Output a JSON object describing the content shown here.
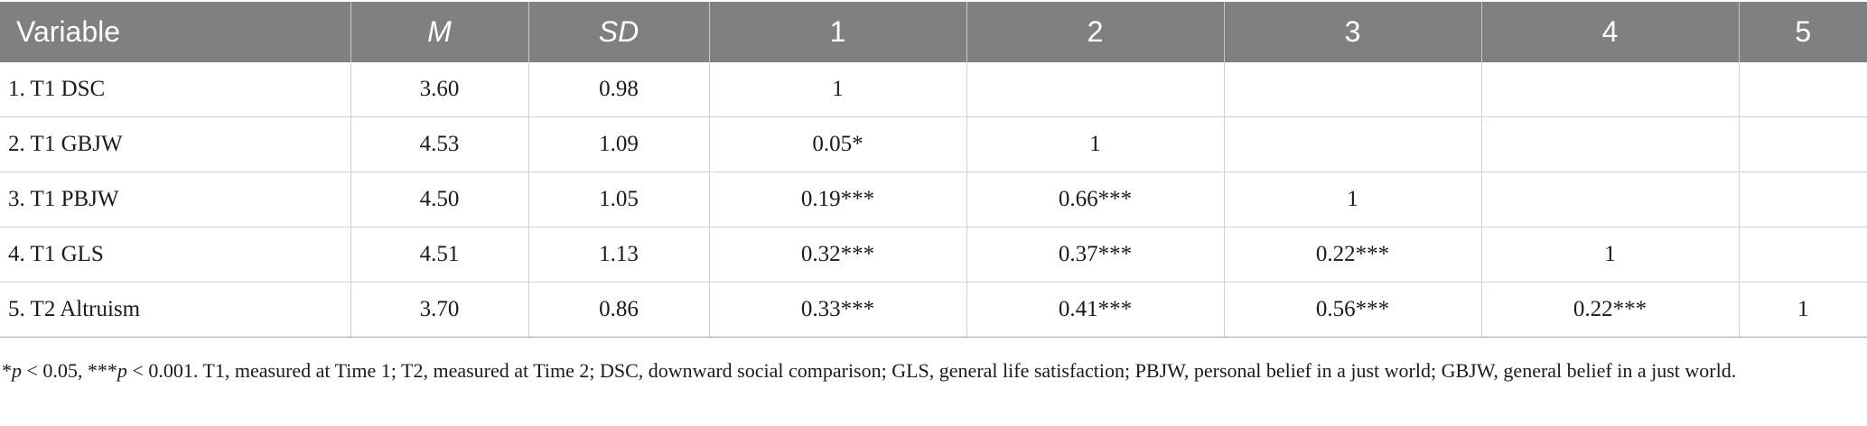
{
  "table": {
    "headers": [
      "Variable",
      "M",
      "SD",
      "1",
      "2",
      "3",
      "4",
      "5"
    ],
    "rows": [
      [
        "1. T1 DSC",
        "3.60",
        "0.98",
        "1",
        "",
        "",
        "",
        ""
      ],
      [
        "2. T1 GBJW",
        "4.53",
        "1.09",
        "0.05*",
        "1",
        "",
        "",
        ""
      ],
      [
        "3. T1 PBJW",
        "4.50",
        "1.05",
        "0.19***",
        "0.66***",
        "1",
        "",
        ""
      ],
      [
        "4. T1 GLS",
        "4.51",
        "1.13",
        "0.32***",
        "0.37***",
        "0.22***",
        "1",
        ""
      ],
      [
        "5. T2 Altruism",
        "3.70",
        "0.86",
        "0.33***",
        "0.41***",
        "0.56***",
        "0.22***",
        "1"
      ]
    ]
  },
  "note": {
    "star1": "*",
    "p1": "p",
    "thr1": " < 0.05, ***",
    "p2": "p",
    "rest": " < 0.001. T1, measured at Time 1; T2, measured at Time 2; DSC, downward social comparison; GLS, general life satisfaction; PBJW, personal belief in a just world; GBJW, general belief in a just world."
  },
  "colors": {
    "header_bg": "#808080",
    "header_text": "#ffffff",
    "grid": "#d0d0d0"
  }
}
